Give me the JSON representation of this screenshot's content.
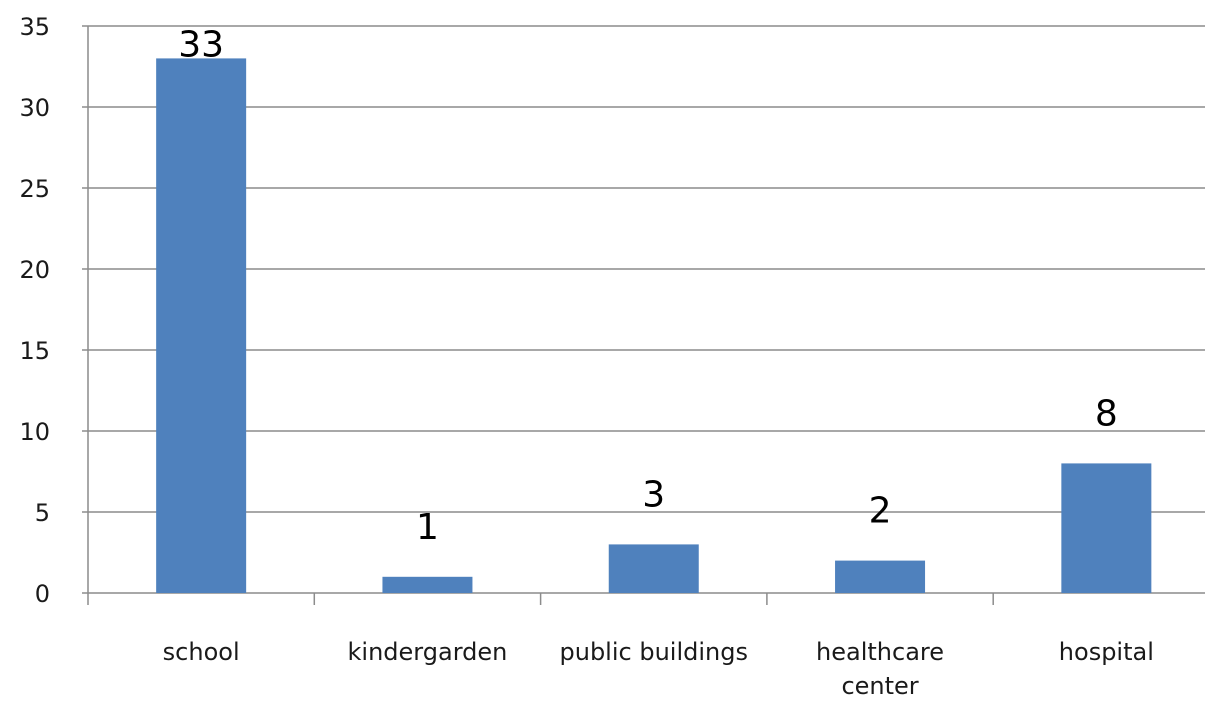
{
  "chart_data": {
    "type": "bar",
    "title": "",
    "xlabel": "",
    "ylabel": "",
    "categories": [
      [
        "school"
      ],
      [
        "kindergarden"
      ],
      [
        "public buildings"
      ],
      [
        "healthcare",
        "center"
      ],
      [
        "hospital"
      ]
    ],
    "values": [
      33,
      1,
      3,
      2,
      8
    ],
    "data_labels": [
      "33",
      "1",
      "3",
      "2",
      "8"
    ],
    "ylim": [
      0,
      35
    ],
    "yticks": [
      0,
      5,
      10,
      15,
      20,
      25,
      30,
      35
    ],
    "grid": true,
    "legend": "none",
    "colors": {
      "bar": "#4F81BD",
      "bar_edge": "#3A6AA8",
      "grid": "#8C8C8C",
      "axis": "#8C8C8C",
      "text": "#1a1a1a"
    }
  }
}
